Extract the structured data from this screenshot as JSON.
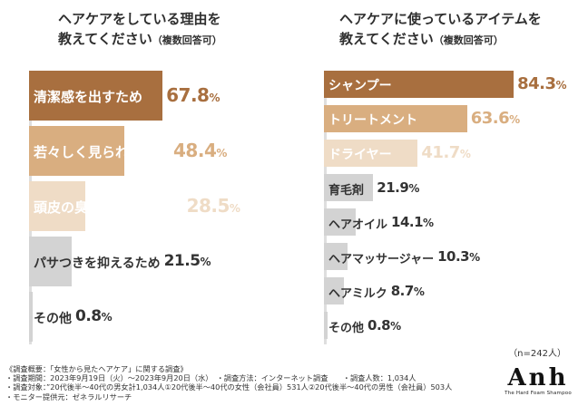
{
  "chart_data": [
    {
      "type": "bar",
      "title": "ヘアケアをしている理由を教えてください",
      "title_line1": "ヘアケアをしている理由を",
      "title_line2": "教えてください",
      "title_note": "（複数回答可）",
      "unit": "%",
      "categories": [
        "清潔感を出すため",
        "若々しく見られるため",
        "頭皮の臭いを抑えるため",
        "パサつきを抑えるため",
        "その他"
      ],
      "values": [
        67.8,
        48.4,
        28.5,
        21.5,
        0.8
      ],
      "xlim": [
        0,
        100
      ]
    },
    {
      "type": "bar",
      "title": "ヘアケアに使っているアイテムを教えてください",
      "title_line1": "ヘアケアに使っているアイテムを",
      "title_line2": "教えてください",
      "title_note": "（複数回答可）",
      "unit": "%",
      "categories": [
        "シャンプー",
        "トリートメント",
        "ドライヤー",
        "育毛剤",
        "ヘアオイル",
        "ヘアマッサージャー",
        "ヘアミルク",
        "その他"
      ],
      "values": [
        84.3,
        63.6,
        41.7,
        21.9,
        14.1,
        10.3,
        8.7,
        0.8
      ],
      "xlim": [
        0,
        100
      ]
    }
  ],
  "colors": {
    "rank1": "#a86f3f",
    "rank2": "#d9ae80",
    "rank3": "#efdcc6",
    "other": "#d3d3d3",
    "text": "#333333"
  },
  "sample_note": "（n=242人）",
  "footer": {
    "line1": "《調査概要：「女性から見たヘアケア」に関する調査》",
    "line2": "・調査期間：2023年9月19日（火）～2023年9月20日（水）　・調査方法：インターネット調査　　・調査人数：1,034人",
    "line3": "・調査対象：”20代後半～40代の男女計1,034人①20代後半～40代の女性（会社員）531人②20代後半～40代の男性（会社員）503人",
    "line4": "・モニター提供元：ゼネラルリサーチ"
  },
  "logo": {
    "brand": "Anh",
    "tagline": "The Hard Foam Shampoo"
  }
}
